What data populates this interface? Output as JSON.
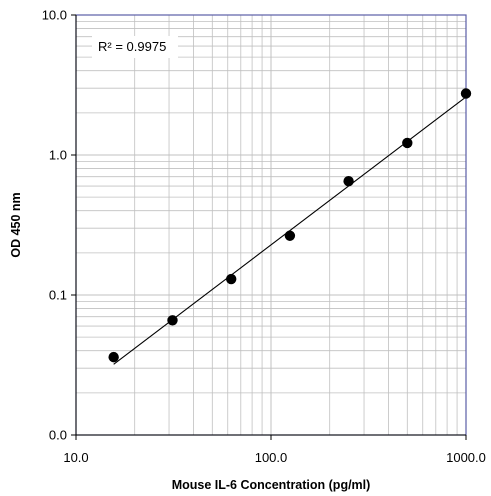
{
  "chart_data": {
    "type": "scatter",
    "title": "",
    "xlabel": "Mouse IL-6 Concentration (pg/ml)",
    "ylabel": "OD 450 nm",
    "x_scale": "log",
    "y_scale": "log",
    "xlim": [
      10,
      1000
    ],
    "ylim": [
      0.01,
      10
    ],
    "x_ticks": [
      10,
      100,
      1000
    ],
    "x_tick_labels": [
      "10.0",
      "100.0",
      "1000.0"
    ],
    "y_ticks": [
      0.01,
      0.1,
      1,
      10
    ],
    "y_tick_labels": [
      "0.0",
      "0.1",
      "1.0",
      "10.0"
    ],
    "grid": true,
    "series": [
      {
        "x": [
          15.6,
          31.25,
          62.5,
          125,
          250,
          500,
          1000
        ],
        "y": [
          0.036,
          0.066,
          0.13,
          0.265,
          0.65,
          1.22,
          2.75
        ]
      }
    ],
    "trendline": {
      "type": "power",
      "x_range": [
        15.6,
        1000
      ],
      "y_range": [
        0.032,
        2.6
      ]
    },
    "annotation": "R² = 0.9975",
    "colors": {
      "frame": "#5b5ea6",
      "grid": "#c0c0c0",
      "points": "#000000"
    }
  }
}
